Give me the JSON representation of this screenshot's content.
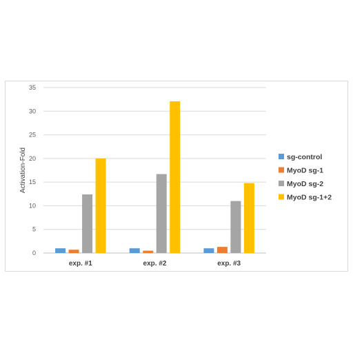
{
  "chart_data": {
    "type": "bar",
    "categories": [
      "exp. #1",
      "exp. #2",
      "exp. #3"
    ],
    "series": [
      {
        "name": "sg-control",
        "color": "#5b9bd5",
        "values": [
          1.0,
          1.0,
          1.0
        ]
      },
      {
        "name": "MyoD sg-1",
        "color": "#ed7d31",
        "values": [
          0.7,
          0.5,
          1.3
        ]
      },
      {
        "name": "MyoD sg-2",
        "color": "#a5a5a5",
        "values": [
          12.4,
          16.7,
          11.0
        ]
      },
      {
        "name": "MyoD sg-1+2",
        "color": "#ffc000",
        "values": [
          20.0,
          32.1,
          14.8
        ]
      }
    ],
    "title": "",
    "xlabel": "",
    "ylabel": "Activation-Fold",
    "ylim": [
      0,
      35
    ],
    "yticks": [
      0,
      5,
      10,
      15,
      20,
      25,
      30,
      35
    ],
    "grid": true,
    "legend_position": "right"
  }
}
